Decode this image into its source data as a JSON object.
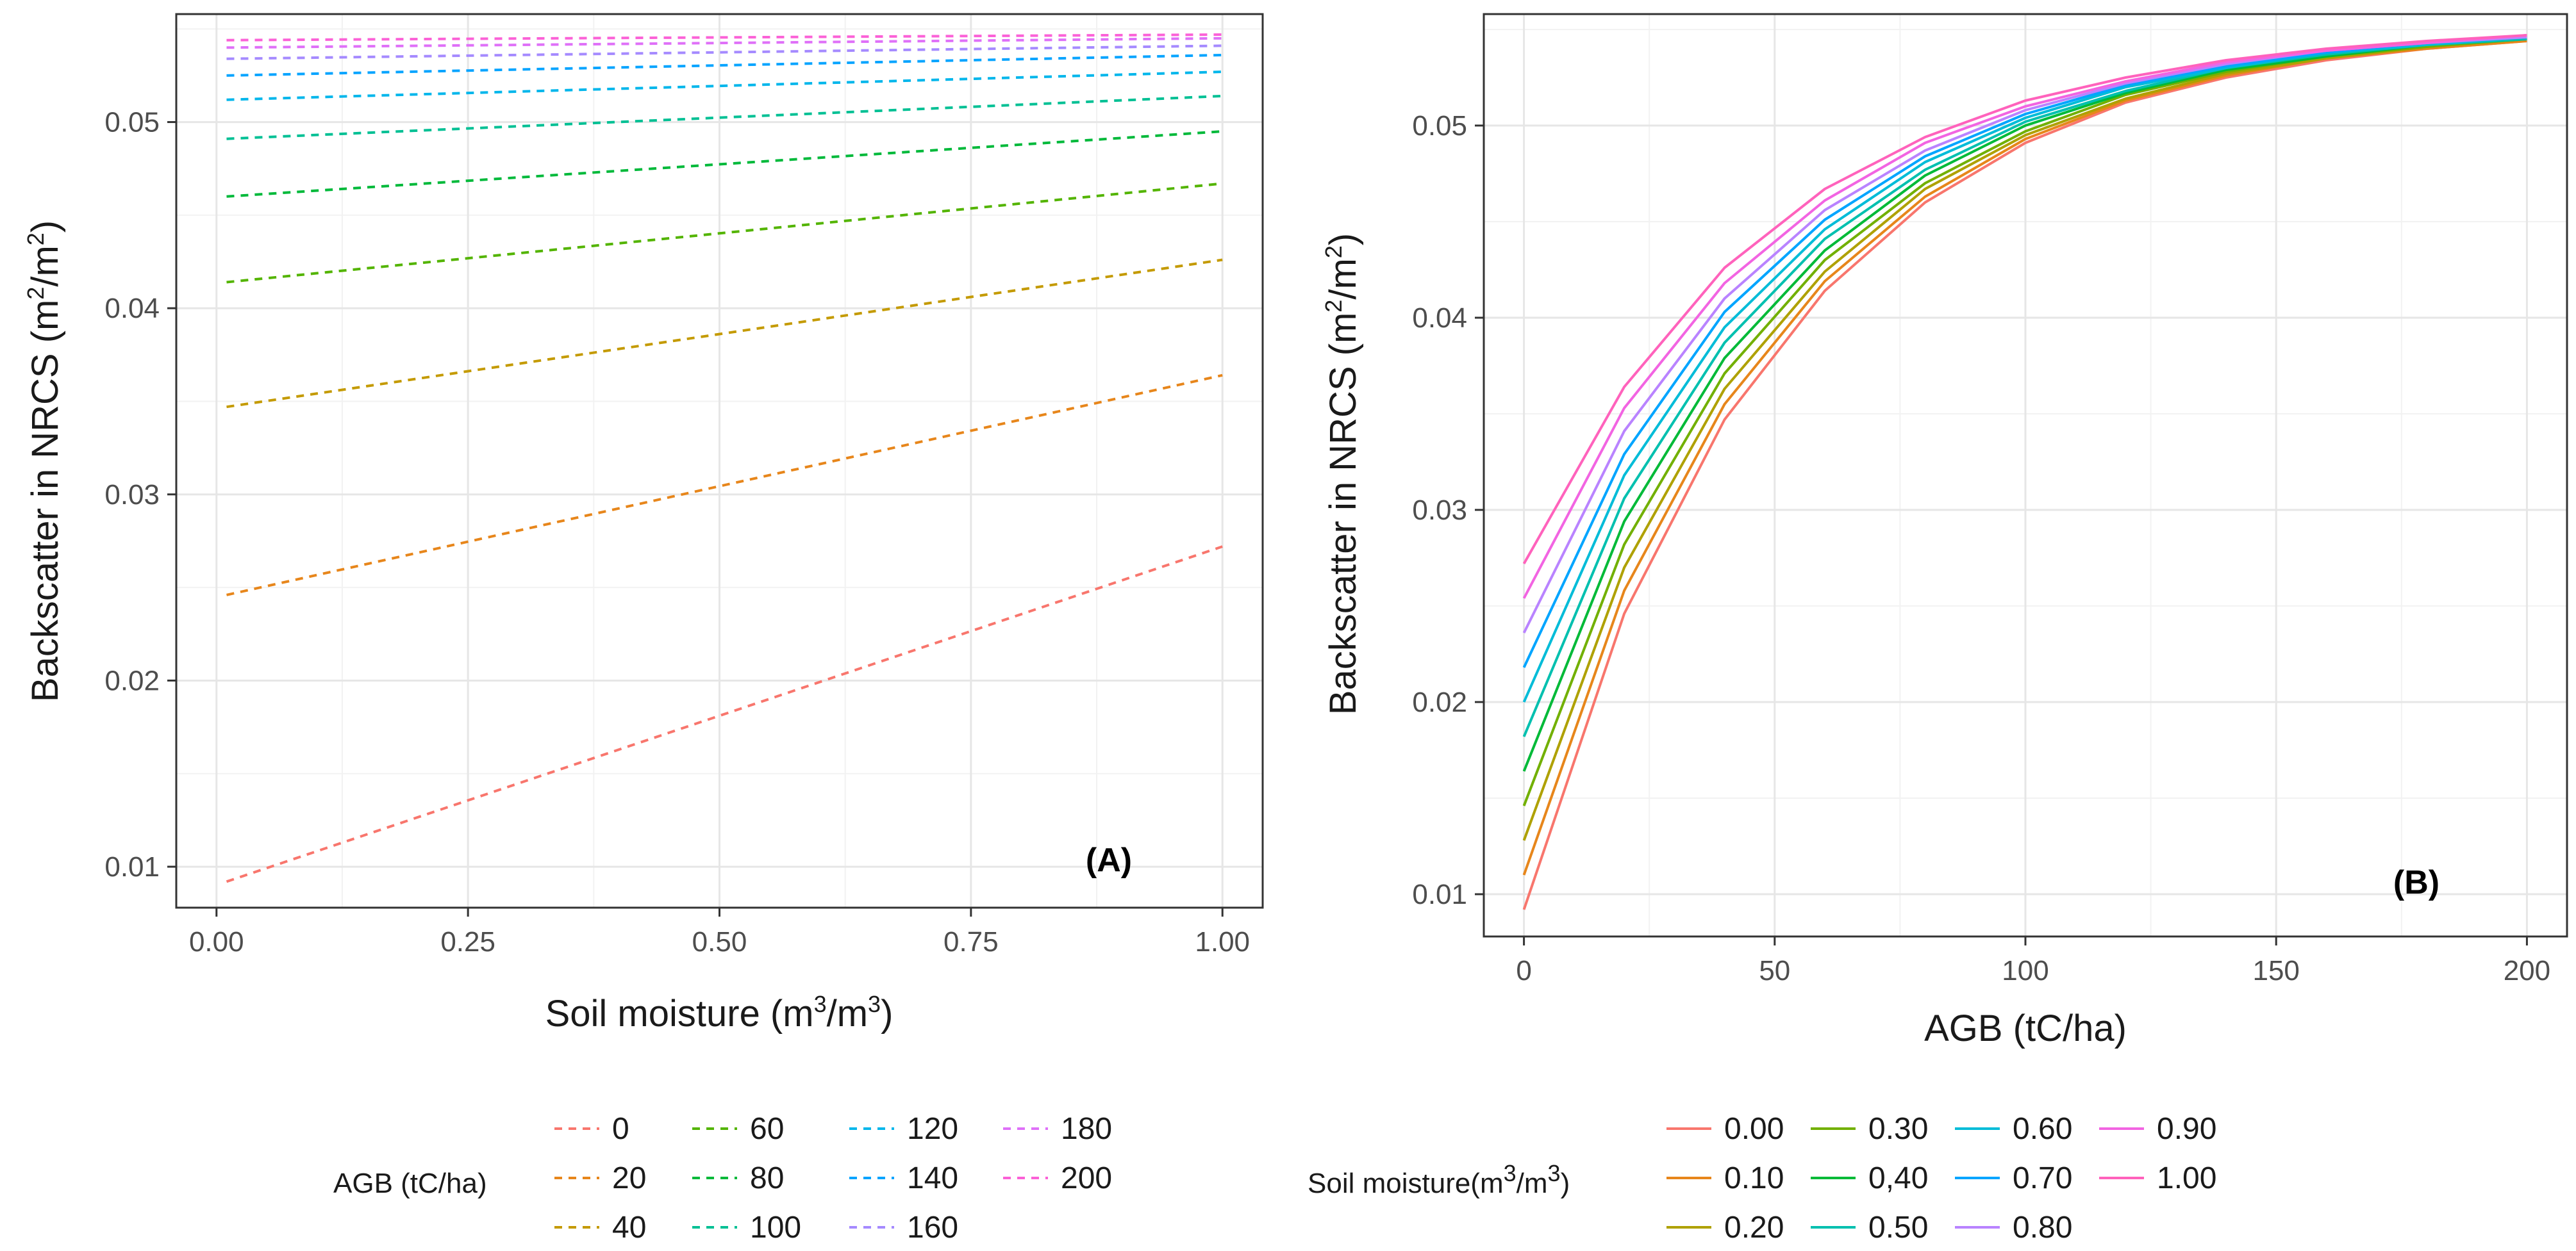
{
  "chart_data": [
    {
      "panel_label": "(A)",
      "type": "line",
      "line_style": "dashed",
      "xlabel_main": "Soil moisture (m",
      "xlabel_sup1": "3",
      "xlabel_mid": "/m",
      "xlabel_sup2": "3",
      "xlabel_end": ")",
      "ylabel_main": "Backscatter in NRCS (m",
      "ylabel_sup1": "2",
      "ylabel_mid": "/m",
      "ylabel_sup2": "2",
      "ylabel_end": ")",
      "xlim": [
        -0.04,
        1.04
      ],
      "ylim": [
        0.0078,
        0.0558
      ],
      "xticks": [
        0.0,
        0.25,
        0.5,
        0.75,
        1.0
      ],
      "xtick_labels": [
        "0.00",
        "0.25",
        "0.50",
        "0.75",
        "1.00"
      ],
      "yticks": [
        0.01,
        0.02,
        0.03,
        0.04,
        0.05
      ],
      "ytick_labels": [
        "0.01",
        "0.02",
        "0.03",
        "0.04",
        "0.05"
      ],
      "x": [
        0.01,
        1.0
      ],
      "legend_title": "AGB (tC/ha)",
      "legend_position": "bottom",
      "series": [
        {
          "name": "0",
          "color": "#F8766D",
          "values": [
            0.0092,
            0.0272
          ]
        },
        {
          "name": "20",
          "color": "#E7861B",
          "values": [
            0.0246,
            0.0364
          ]
        },
        {
          "name": "40",
          "color": "#C49A00",
          "values": [
            0.0347,
            0.0426
          ]
        },
        {
          "name": "60",
          "color": "#53B400",
          "values": [
            0.0414,
            0.0467
          ]
        },
        {
          "name": "80",
          "color": "#00B93A",
          "values": [
            0.046,
            0.0495
          ]
        },
        {
          "name": "100",
          "color": "#00C094",
          "values": [
            0.0491,
            0.0514
          ]
        },
        {
          "name": "120",
          "color": "#00B6EB",
          "values": [
            0.0512,
            0.0527
          ]
        },
        {
          "name": "140",
          "color": "#06A4FF",
          "values": [
            0.0525,
            0.0536
          ]
        },
        {
          "name": "160",
          "color": "#A58AFF",
          "values": [
            0.0534,
            0.0541
          ]
        },
        {
          "name": "180",
          "color": "#DF70F8",
          "values": [
            0.054,
            0.0545
          ]
        },
        {
          "name": "200",
          "color": "#FB61D7",
          "values": [
            0.0544,
            0.0547
          ]
        }
      ]
    },
    {
      "panel_label": "(B)",
      "type": "line",
      "line_style": "solid",
      "xlabel": "AGB (tC/ha)",
      "ylabel_main": "Backscatter in NRCS (m",
      "ylabel_sup1": "2",
      "ylabel_mid": "/m",
      "ylabel_sup2": "2",
      "ylabel_end": ")",
      "xlim": [
        -8,
        208
      ],
      "ylim": [
        0.0078,
        0.0558
      ],
      "xticks": [
        0,
        50,
        100,
        150,
        200
      ],
      "xtick_labels": [
        "0",
        "50",
        "100",
        "150",
        "200"
      ],
      "yticks": [
        0.01,
        0.02,
        0.03,
        0.04,
        0.05
      ],
      "ytick_labels": [
        "0.01",
        "0.02",
        "0.03",
        "0.04",
        "0.05"
      ],
      "x": [
        0,
        20,
        40,
        60,
        80,
        100,
        120,
        140,
        160,
        180,
        200
      ],
      "legend_title": "Soil moisture(m",
      "legend_title_sup1": "3",
      "legend_title_mid": "/m",
      "legend_title_sup2": "3",
      "legend_title_end": ")",
      "legend_position": "bottom",
      "series": [
        {
          "name": "0.00",
          "color": "#F8766D",
          "values": [
            0.0092,
            0.0246,
            0.0347,
            0.0414,
            0.046,
            0.0491,
            0.0512,
            0.0525,
            0.0534,
            0.054,
            0.0544
          ]
        },
        {
          "name": "0.10",
          "color": "#E7861B",
          "values": [
            0.011,
            0.0258,
            0.0355,
            0.0419,
            0.0463,
            0.0493,
            0.0513,
            0.0526,
            0.0535,
            0.054,
            0.0544
          ]
        },
        {
          "name": "0.20",
          "color": "#AFA100",
          "values": [
            0.0128,
            0.027,
            0.0363,
            0.0424,
            0.0467,
            0.0495,
            0.0514,
            0.0527,
            0.0535,
            0.0541,
            0.0545
          ]
        },
        {
          "name": "0.30",
          "color": "#72B000",
          "values": [
            0.0146,
            0.0282,
            0.0371,
            0.043,
            0.047,
            0.0497,
            0.0516,
            0.0528,
            0.0536,
            0.0541,
            0.0545
          ]
        },
        {
          "name": "0,40",
          "color": "#00BA38",
          "values": [
            0.0164,
            0.0294,
            0.0379,
            0.0435,
            0.0474,
            0.05,
            0.0517,
            0.0529,
            0.0536,
            0.0542,
            0.0545
          ]
        },
        {
          "name": "0.50",
          "color": "#00C0AF",
          "values": [
            0.0182,
            0.0306,
            0.0387,
            0.0441,
            0.0477,
            0.0502,
            0.0518,
            0.053,
            0.0537,
            0.0542,
            0.0545
          ]
        },
        {
          "name": "0.60",
          "color": "#00BCD8",
          "values": [
            0.02,
            0.0318,
            0.0395,
            0.0446,
            0.0481,
            0.0504,
            0.052,
            0.053,
            0.0538,
            0.0542,
            0.0546
          ]
        },
        {
          "name": "0.70",
          "color": "#00A5FF",
          "values": [
            0.0218,
            0.0329,
            0.0403,
            0.0451,
            0.0484,
            0.0506,
            0.0521,
            0.0531,
            0.0538,
            0.0543,
            0.0546
          ]
        },
        {
          "name": "0.80",
          "color": "#B983FF",
          "values": [
            0.0236,
            0.0341,
            0.041,
            0.0456,
            0.0487,
            0.0508,
            0.0522,
            0.0532,
            0.0539,
            0.0543,
            0.0546
          ]
        },
        {
          "name": "0.90",
          "color": "#F264E2",
          "values": [
            0.0254,
            0.0353,
            0.0418,
            0.0461,
            0.0491,
            0.051,
            0.0523,
            0.0533,
            0.0539,
            0.0543,
            0.0547
          ]
        },
        {
          "name": "1.00",
          "color": "#FF62BC",
          "values": [
            0.0272,
            0.0364,
            0.0426,
            0.0467,
            0.0494,
            0.0513,
            0.0525,
            0.0534,
            0.054,
            0.0544,
            0.0547
          ]
        }
      ]
    }
  ]
}
